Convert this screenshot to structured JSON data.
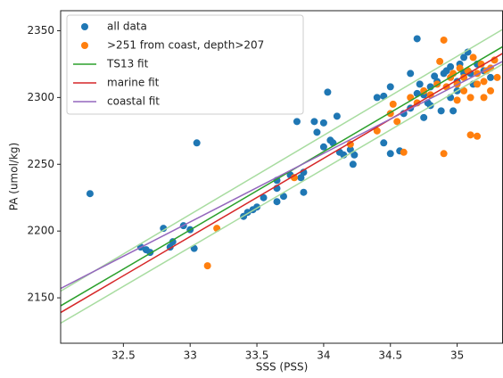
{
  "chart_data": {
    "type": "scatter",
    "xlabel": "SSS (PSS)",
    "ylabel": "PA (umol/kg)",
    "xlim": [
      32.03,
      35.34
    ],
    "ylim": [
      2116,
      2365
    ],
    "xticks": [
      32.5,
      33.0,
      33.5,
      34.0,
      34.5,
      35.0
    ],
    "yticks": [
      2150,
      2200,
      2250,
      2300,
      2350
    ],
    "legend": "upper left",
    "series": [
      {
        "name": "all data",
        "type": "scatter",
        "color": "#1f77b4",
        "x": [
          32.25,
          32.63,
          32.67,
          32.7,
          32.8,
          32.85,
          32.87,
          32.95,
          33.0,
          33.03,
          33.05,
          33.4,
          33.43,
          33.47,
          33.5,
          33.55,
          33.65,
          33.65,
          33.65,
          33.7,
          33.75,
          33.8,
          33.85,
          33.83,
          33.85,
          33.93,
          33.95,
          34.0,
          34.0,
          34.03,
          34.05,
          34.07,
          34.1,
          34.12,
          34.15,
          34.2,
          34.22,
          34.23,
          34.4,
          34.45,
          34.45,
          34.5,
          34.5,
          34.57,
          34.6,
          34.65,
          34.7,
          34.65,
          34.7,
          34.72,
          34.75,
          34.78,
          34.8,
          34.8,
          34.85,
          34.9,
          34.92,
          34.95,
          34.97,
          35.0,
          35.0,
          35.02,
          35.05,
          35.08,
          35.1,
          35.12,
          35.15,
          35.2,
          35.25,
          34.95,
          34.88,
          35.05,
          34.83,
          34.75
        ],
        "values": [
          2228,
          2188,
          2186,
          2184,
          2202,
          2188,
          2192,
          2204,
          2201,
          2187,
          2266,
          2211,
          2214,
          2216,
          2218,
          2225,
          2222,
          2232,
          2238,
          2226,
          2242,
          2282,
          2229,
          2240,
          2244,
          2282,
          2274,
          2281,
          2263,
          2304,
          2268,
          2266,
          2286,
          2259,
          2257,
          2261,
          2250,
          2257,
          2300,
          2301,
          2266,
          2258,
          2308,
          2260,
          2288,
          2318,
          2344,
          2292,
          2303,
          2310,
          2302,
          2296,
          2308,
          2294,
          2312,
          2318,
          2320,
          2323,
          2290,
          2305,
          2312,
          2325,
          2330,
          2334,
          2318,
          2310,
          2325,
          2320,
          2315,
          2300,
          2290,
          2318,
          2316,
          2285
        ]
      },
      {
        "name": ">251 from coast, depth>207",
        "type": "scatter",
        "color": "#ff7f0e",
        "x": [
          33.13,
          33.2,
          33.78,
          34.2,
          34.4,
          34.5,
          34.52,
          34.55,
          34.6,
          34.65,
          34.7,
          34.75,
          34.8,
          34.85,
          34.87,
          34.9,
          34.9,
          34.92,
          34.95,
          34.97,
          35.0,
          35.02,
          35.05,
          35.08,
          35.1,
          35.15,
          35.12,
          35.15,
          35.18,
          35.2,
          35.22,
          35.25,
          35.28,
          35.3,
          35.1,
          35.05,
          35.2,
          35.0,
          35.25,
          35.15
        ],
        "values": [
          2174,
          2202,
          2240,
          2265,
          2275,
          2288,
          2295,
          2282,
          2259,
          2300,
          2296,
          2305,
          2302,
          2310,
          2327,
          2343,
          2258,
          2308,
          2315,
          2318,
          2310,
          2322,
          2315,
          2320,
          2272,
          2271,
          2330,
          2318,
          2325,
          2312,
          2320,
          2305,
          2328,
          2315,
          2300,
          2305,
          2300,
          2298,
          2322,
          2310
        ]
      },
      {
        "type": "line",
        "color": "#a8dca0",
        "x": [
          32.03,
          35.34
        ],
        "values": [
          2155,
          2351
        ]
      },
      {
        "type": "line",
        "color": "#a8dca0",
        "x": [
          32.03,
          35.34
        ],
        "values": [
          2131,
          2325
        ]
      },
      {
        "name": "TS13 fit",
        "type": "line",
        "color": "#2ca02c",
        "x": [
          32.03,
          35.34
        ],
        "values": [
          2144,
          2338
        ]
      },
      {
        "name": "marine fit",
        "type": "line",
        "color": "#d62728",
        "x": [
          32.03,
          35.34
        ],
        "values": [
          2139,
          2333
        ]
      },
      {
        "name": "coastal fit",
        "type": "line",
        "color": "#9467bd",
        "x": [
          32.03,
          35.34
        ],
        "values": [
          2157,
          2327
        ]
      }
    ]
  }
}
